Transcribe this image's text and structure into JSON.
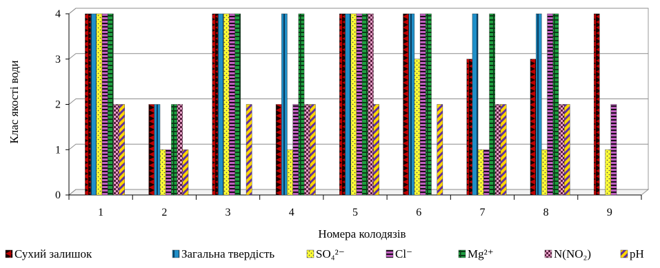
{
  "chart_data": {
    "type": "bar",
    "title": "",
    "xlabel": "Номера колодязів",
    "ylabel": "Клас якості води",
    "ylim": [
      0,
      4
    ],
    "yticks": [
      "0",
      "1",
      "2",
      "3",
      "4"
    ],
    "categories": [
      "1",
      "2",
      "3",
      "4",
      "5",
      "6",
      "7",
      "8",
      "9"
    ],
    "grid": true,
    "legend_position": "bottom",
    "series": [
      {
        "name": "Сухий залишок",
        "color": "#c00000",
        "pattern": "dark-triangles",
        "values": [
          4,
          2,
          4,
          2,
          4,
          4,
          3,
          3,
          4
        ]
      },
      {
        "name": "Загальна твердість",
        "color": "#1f8fc8",
        "pattern": "vertical-stripe",
        "values": [
          4,
          2,
          4,
          4,
          4,
          4,
          4,
          4,
          0
        ]
      },
      {
        "name": "SO₄²⁻",
        "color": "#ffff33",
        "pattern": "dots",
        "values": [
          4,
          1,
          4,
          1,
          4,
          3,
          1,
          1,
          1
        ]
      },
      {
        "name": "Cl⁻",
        "color": "#c060c0",
        "pattern": "horizontal-stripes",
        "values": [
          4,
          1,
          4,
          2,
          4,
          4,
          1,
          4,
          2
        ]
      },
      {
        "name": "Mg²⁺",
        "color": "#1fa040",
        "pattern": "horizontal-bricks",
        "values": [
          4,
          2,
          4,
          4,
          4,
          4,
          4,
          4,
          0
        ]
      },
      {
        "name": "N(NO₂)",
        "color": "#e8a0c8",
        "pattern": "checker",
        "values": [
          2,
          2,
          0,
          2,
          4,
          0,
          2,
          2,
          0
        ]
      },
      {
        "name": "pH",
        "color": "#ffd700",
        "pattern": "diagonal-stripes",
        "values": [
          2,
          1,
          2,
          2,
          2,
          2,
          2,
          2,
          0
        ]
      }
    ]
  }
}
